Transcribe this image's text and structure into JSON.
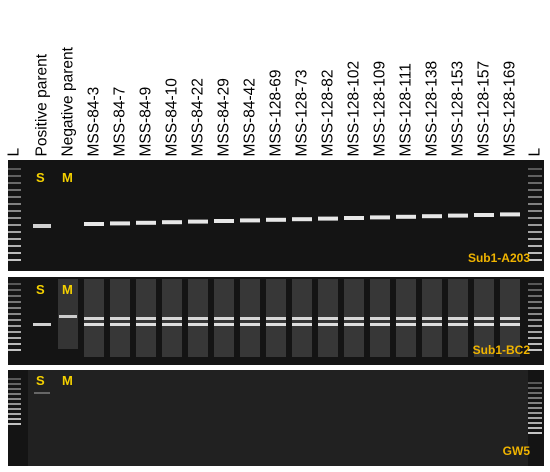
{
  "lane_labels": [
    "L",
    "Positive parent",
    "Negative parent",
    "MSS-84-3",
    "MSS-84-7",
    "MSS-84-9",
    "MSS-84-10",
    "MSS-84-22",
    "MSS-84-29",
    "MSS-84-42",
    "MSS-128-69",
    "MSS-128-73",
    "MSS-128-82",
    "MSS-128-102",
    "MSS-128-109",
    "MSS-128-111",
    "MSS-128-138",
    "MSS-128-153",
    "MSS-128-157",
    "MSS-128-169",
    "L"
  ],
  "panels": [
    {
      "name": "Sub1-A203",
      "markers": [
        "S",
        "M"
      ]
    },
    {
      "name": "Sub1-BC2",
      "markers": [
        "S",
        "M"
      ]
    },
    {
      "name": "GW5",
      "markers": [
        "S",
        "M"
      ]
    }
  ],
  "colors": {
    "gel": "#141414",
    "band": "#f2f2f2",
    "marker_text": "#f4d000",
    "panel_text": "#f0b400"
  }
}
